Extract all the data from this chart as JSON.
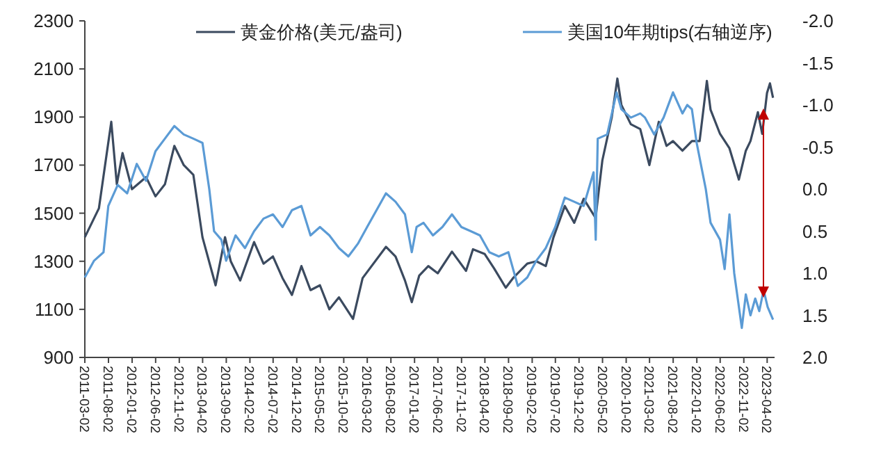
{
  "chart_data": {
    "type": "line",
    "legend": "top",
    "grid": false,
    "xlim": [
      "2011-03-02",
      "2023-05-20"
    ],
    "xticks": [
      "2011-03-02",
      "2011-08-02",
      "2012-01-02",
      "2012-06-02",
      "2012-11-02",
      "2013-04-02",
      "2013-09-02",
      "2014-02-02",
      "2014-07-02",
      "2014-12-02",
      "2015-05-02",
      "2015-10-02",
      "2016-03-02",
      "2016-08-02",
      "2017-01-02",
      "2017-06-02",
      "2017-11-02",
      "2018-04-02",
      "2018-09-02",
      "2019-02-02",
      "2019-07-02",
      "2019-12-02",
      "2020-05-02",
      "2020-10-02",
      "2021-03-02",
      "2021-08-02",
      "2022-01-02",
      "2022-06-02",
      "2022-11-02",
      "2023-04-02"
    ],
    "ylim": [
      900,
      2300
    ],
    "yticks": [
      900,
      1100,
      1300,
      1500,
      1700,
      1900,
      2100,
      2300
    ],
    "y2lim": [
      2,
      -2
    ],
    "y2ticks": [
      {
        "value": 2,
        "label": "2.0"
      },
      {
        "value": 1.5,
        "label": "1.5"
      },
      {
        "value": 1,
        "label": "1.0"
      },
      {
        "value": 0.5,
        "label": "0.5"
      },
      {
        "value": 0,
        "label": "0.0"
      },
      {
        "value": -0.5,
        "label": "-0.5"
      },
      {
        "value": -1,
        "label": "-1.0"
      },
      {
        "value": -1.5,
        "label": "-1.5"
      },
      {
        "value": -2,
        "label": "-2.0"
      }
    ],
    "series": [
      {
        "name": "黄金价格(美元/盎司)",
        "color": "#3b4a5f",
        "x": [
          "2011-03-02",
          "2011-06-01",
          "2011-08-20",
          "2011-09-25",
          "2011-11-01",
          "2012-01-01",
          "2012-04-01",
          "2012-06-01",
          "2012-08-01",
          "2012-10-01",
          "2012-12-01",
          "2013-02-01",
          "2013-04-01",
          "2013-06-25",
          "2013-08-25",
          "2013-10-01",
          "2013-12-01",
          "2014-03-01",
          "2014-05-01",
          "2014-07-01",
          "2014-09-01",
          "2014-11-01",
          "2015-01-01",
          "2015-03-01",
          "2015-05-01",
          "2015-07-01",
          "2015-09-01",
          "2015-12-01",
          "2016-02-01",
          "2016-07-01",
          "2016-09-01",
          "2016-11-01",
          "2016-12-15",
          "2017-02-01",
          "2017-04-01",
          "2017-06-01",
          "2017-09-01",
          "2017-12-01",
          "2018-01-15",
          "2018-04-01",
          "2018-06-01",
          "2018-08-15",
          "2018-10-01",
          "2019-01-01",
          "2019-03-01",
          "2019-05-01",
          "2019-06-20",
          "2019-09-01",
          "2019-11-01",
          "2020-01-01",
          "2020-03-18",
          "2020-05-01",
          "2020-07-01",
          "2020-08-06",
          "2020-09-01",
          "2020-11-01",
          "2021-01-01",
          "2021-03-01",
          "2021-05-01",
          "2021-06-20",
          "2021-08-01",
          "2021-10-01",
          "2021-12-01",
          "2022-01-20",
          "2022-03-08",
          "2022-04-01",
          "2022-06-01",
          "2022-08-01",
          "2022-10-01",
          "2022-11-15",
          "2022-12-15",
          "2023-02-01",
          "2023-03-01",
          "2023-04-01",
          "2023-04-20",
          "2023-05-10"
        ],
        "values": [
          1400,
          1520,
          1880,
          1620,
          1750,
          1600,
          1650,
          1570,
          1620,
          1780,
          1700,
          1660,
          1400,
          1200,
          1400,
          1300,
          1220,
          1380,
          1290,
          1320,
          1230,
          1160,
          1280,
          1180,
          1200,
          1100,
          1150,
          1060,
          1230,
          1360,
          1320,
          1220,
          1130,
          1240,
          1280,
          1250,
          1340,
          1260,
          1350,
          1330,
          1270,
          1190,
          1230,
          1290,
          1300,
          1280,
          1400,
          1530,
          1460,
          1560,
          1480,
          1720,
          1900,
          2060,
          1950,
          1870,
          1850,
          1700,
          1880,
          1780,
          1800,
          1760,
          1800,
          1800,
          2050,
          1930,
          1830,
          1770,
          1640,
          1760,
          1800,
          1920,
          1830,
          2000,
          2040,
          1980
        ]
      },
      {
        "name": "美国10年期tips(右轴逆序)",
        "color": "#5b9bd5",
        "axis": "y2",
        "x": [
          "2011-03-02",
          "2011-05-01",
          "2011-07-01",
          "2011-08-01",
          "2011-10-01",
          "2011-12-01",
          "2012-02-01",
          "2012-04-01",
          "2012-06-01",
          "2012-08-01",
          "2012-10-01",
          "2012-12-01",
          "2013-02-01",
          "2013-04-01",
          "2013-05-15",
          "2013-06-15",
          "2013-08-01",
          "2013-09-01",
          "2013-11-01",
          "2014-01-01",
          "2014-03-01",
          "2014-05-01",
          "2014-07-01",
          "2014-09-01",
          "2014-11-01",
          "2015-01-01",
          "2015-03-01",
          "2015-05-01",
          "2015-07-01",
          "2015-09-01",
          "2015-11-01",
          "2016-01-01",
          "2016-03-01",
          "2016-05-01",
          "2016-07-01",
          "2016-09-01",
          "2016-11-01",
          "2016-12-15",
          "2017-01-15",
          "2017-03-01",
          "2017-05-01",
          "2017-07-01",
          "2017-09-01",
          "2017-11-01",
          "2018-01-01",
          "2018-03-01",
          "2018-05-01",
          "2018-07-01",
          "2018-09-01",
          "2018-11-01",
          "2019-01-01",
          "2019-03-01",
          "2019-05-01",
          "2019-07-01",
          "2019-09-01",
          "2019-11-01",
          "2020-01-01",
          "2020-03-05",
          "2020-03-19",
          "2020-04-01",
          "2020-06-01",
          "2020-08-01",
          "2020-09-01",
          "2020-11-01",
          "2021-01-01",
          "2021-02-01",
          "2021-04-01",
          "2021-06-01",
          "2021-08-01",
          "2021-10-01",
          "2021-11-01",
          "2021-12-01",
          "2022-01-01",
          "2022-03-01",
          "2022-04-01",
          "2022-06-01",
          "2022-07-01",
          "2022-08-01",
          "2022-09-01",
          "2022-10-20",
          "2022-11-15",
          "2022-12-15",
          "2023-01-15",
          "2023-02-10",
          "2023-03-10",
          "2023-04-05",
          "2023-05-10"
        ],
        "values": [
          1.05,
          0.85,
          0.75,
          0.2,
          -0.05,
          0.05,
          -0.3,
          -0.1,
          -0.45,
          -0.6,
          -0.75,
          -0.65,
          -0.6,
          -0.55,
          0.0,
          0.5,
          0.6,
          0.85,
          0.55,
          0.7,
          0.5,
          0.35,
          0.3,
          0.45,
          0.25,
          0.2,
          0.55,
          0.45,
          0.55,
          0.7,
          0.8,
          0.65,
          0.45,
          0.25,
          0.05,
          0.15,
          0.3,
          0.75,
          0.45,
          0.4,
          0.55,
          0.45,
          0.3,
          0.45,
          0.5,
          0.55,
          0.75,
          0.8,
          0.75,
          1.15,
          1.05,
          0.85,
          0.7,
          0.45,
          0.1,
          0.15,
          0.2,
          -0.2,
          0.6,
          -0.6,
          -0.65,
          -1.15,
          -0.95,
          -0.85,
          -0.9,
          -0.85,
          -0.65,
          -0.85,
          -1.15,
          -0.9,
          -1.0,
          -0.95,
          -0.55,
          0.0,
          0.4,
          0.6,
          0.95,
          0.3,
          1.0,
          1.65,
          1.25,
          1.5,
          1.3,
          1.45,
          1.2,
          1.4,
          1.55
        ]
      }
    ]
  }
}
